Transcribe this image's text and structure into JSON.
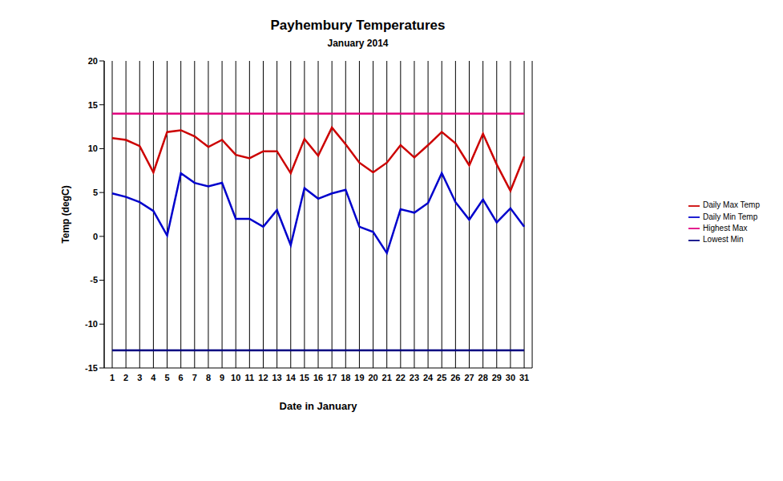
{
  "chart_data": {
    "type": "line",
    "title": "Payhembury Temperatures",
    "subtitle": "January 2014",
    "x_label": "Date in January",
    "y_label": "Temp (degC)",
    "categories": [
      1,
      2,
      3,
      4,
      5,
      6,
      7,
      8,
      9,
      10,
      11,
      12,
      13,
      14,
      15,
      16,
      17,
      18,
      19,
      20,
      21,
      22,
      23,
      24,
      25,
      26,
      27,
      28,
      29,
      30,
      31
    ],
    "series": [
      {
        "name": "Daily Max Temp",
        "color": "#cc0000",
        "values": [
          11.2,
          11.0,
          10.3,
          7.3,
          11.9,
          12.1,
          11.4,
          10.2,
          11.0,
          9.3,
          8.9,
          9.7,
          9.7,
          7.2,
          11.1,
          9.2,
          12.4,
          10.5,
          8.4,
          7.3,
          8.4,
          10.4,
          9.0,
          10.4,
          11.9,
          10.6,
          8.1,
          11.7,
          8.2,
          5.2,
          9.1
        ]
      },
      {
        "name": "Daily Min Temp",
        "color": "#0000cc",
        "values": [
          4.9,
          4.5,
          3.9,
          2.9,
          0.1,
          7.2,
          6.1,
          5.7,
          6.1,
          2.0,
          2.0,
          1.1,
          3.0,
          -1.0,
          5.5,
          4.3,
          4.9,
          5.3,
          1.1,
          0.5,
          -1.9,
          3.1,
          2.7,
          3.8,
          7.2,
          3.9,
          1.9,
          4.2,
          1.6,
          3.2,
          1.1
        ]
      },
      {
        "name": "Highest Max",
        "color": "#e0007f",
        "values": [
          14,
          14,
          14,
          14,
          14,
          14,
          14,
          14,
          14,
          14,
          14,
          14,
          14,
          14,
          14,
          14,
          14,
          14,
          14,
          14,
          14,
          14,
          14,
          14,
          14,
          14,
          14,
          14,
          14,
          14,
          14
        ]
      },
      {
        "name": "Lowest Min",
        "color": "#000080",
        "values": [
          -13,
          -13,
          -13,
          -13,
          -13,
          -13,
          -13,
          -13,
          -13,
          -13,
          -13,
          -13,
          -13,
          -13,
          -13,
          -13,
          -13,
          -13,
          -13,
          -13,
          -13,
          -13,
          -13,
          -13,
          -13,
          -13,
          -13,
          -13,
          -13,
          -13,
          -13
        ]
      }
    ],
    "ylim": [
      -15,
      20
    ],
    "yticks": [
      -15,
      -10,
      -5,
      0,
      5,
      10,
      15,
      20
    ],
    "grid": true,
    "legend": "right"
  }
}
